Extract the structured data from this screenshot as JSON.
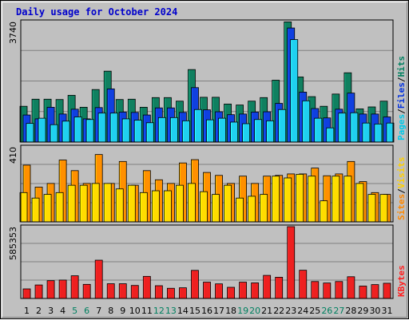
{
  "title": "Daily usage for October 2024",
  "chart_data": [
    {
      "type": "bar",
      "panel": "hits",
      "ymax_label": "3740",
      "ymax": 3740,
      "grid": true,
      "legend_vertical": [
        "Pages",
        "/",
        "Files",
        "/",
        "Hits"
      ],
      "legend_colors": [
        "#00c8e8",
        "#000000",
        "#0030e0",
        "#000000",
        "#008060"
      ],
      "series": [
        {
          "name": "Hits",
          "color": "#108060",
          "values": [
            1110,
            1330,
            1330,
            1320,
            1450,
            1080,
            1630,
            2200,
            1320,
            1330,
            1080,
            1380,
            1380,
            1270,
            2250,
            1390,
            1390,
            1180,
            1150,
            1270,
            1380,
            1920,
            3730,
            2020,
            1410,
            1110,
            1490,
            2150,
            1030,
            1090,
            1270
          ]
        },
        {
          "name": "Files",
          "color": "#1040e0",
          "values": [
            840,
            720,
            1080,
            870,
            1020,
            720,
            1070,
            1650,
            930,
            920,
            840,
            1060,
            1060,
            920,
            1690,
            1000,
            940,
            850,
            870,
            930,
            940,
            1200,
            3540,
            1550,
            1040,
            750,
            1020,
            1520,
            870,
            870,
            780
          ]
        },
        {
          "name": "Pages",
          "color": "#20d0f0",
          "values": [
            580,
            740,
            540,
            650,
            780,
            700,
            900,
            900,
            720,
            680,
            600,
            760,
            760,
            660,
            1010,
            690,
            740,
            620,
            570,
            700,
            660,
            1010,
            3180,
            1280,
            740,
            440,
            900,
            910,
            590,
            560,
            590
          ]
        }
      ]
    },
    {
      "type": "bar",
      "panel": "visits",
      "ymax_label": "410",
      "ymax": 410,
      "grid": true,
      "legend_vertical": [
        "Sites",
        "/",
        "Visits"
      ],
      "legend_colors": [
        "#ff8800",
        "#000000",
        "#ffd000"
      ],
      "series": [
        {
          "name": "Visits",
          "color": "#ff9000",
          "values": [
            310,
            190,
            210,
            338,
            280,
            210,
            368,
            210,
            330,
            200,
            280,
            230,
            210,
            322,
            340,
            270,
            254,
            210,
            250,
            210,
            250,
            254,
            262,
            262,
            294,
            252,
            262,
            330,
            220,
            160,
            150
          ]
        },
        {
          "name": "Sites",
          "color": "#ffdc00",
          "values": [
            160,
            130,
            150,
            160,
            200,
            200,
            210,
            210,
            180,
            200,
            160,
            170,
            170,
            200,
            210,
            165,
            150,
            200,
            130,
            140,
            150,
            250,
            240,
            260,
            250,
            115,
            250,
            250,
            210,
            150,
            150
          ]
        }
      ]
    },
    {
      "type": "bar",
      "panel": "kbytes",
      "ymax_label": "585353",
      "ymax": 585353,
      "grid": true,
      "legend_vertical": [
        "KBytes"
      ],
      "legend_colors": [
        "#ff2020"
      ],
      "categories": [
        "1",
        "2",
        "3",
        "4",
        "5",
        "6",
        "7",
        "8",
        "9",
        "10",
        "11",
        "12",
        "13",
        "14",
        "15",
        "16",
        "17",
        "18",
        "19",
        "20",
        "21",
        "22",
        "23",
        "24",
        "25",
        "26",
        "27",
        "28",
        "29",
        "30",
        "31"
      ],
      "weekend_days": [
        "5",
        "6",
        "12",
        "13",
        "19",
        "20",
        "26",
        "27"
      ],
      "weekday_color": "#000000",
      "weekend_color": "#008060",
      "series": [
        {
          "name": "KBytes",
          "color": "#ee2020",
          "values": [
            78000,
            110000,
            145000,
            150000,
            185000,
            115000,
            312000,
            120000,
            120000,
            106000,
            180000,
            104000,
            83000,
            87000,
            229000,
            133000,
            119000,
            91000,
            133000,
            127000,
            188000,
            173000,
            585353,
            230000,
            138000,
            126000,
            138000,
            177000,
            101000,
            113000,
            124000
          ]
        }
      ]
    }
  ]
}
